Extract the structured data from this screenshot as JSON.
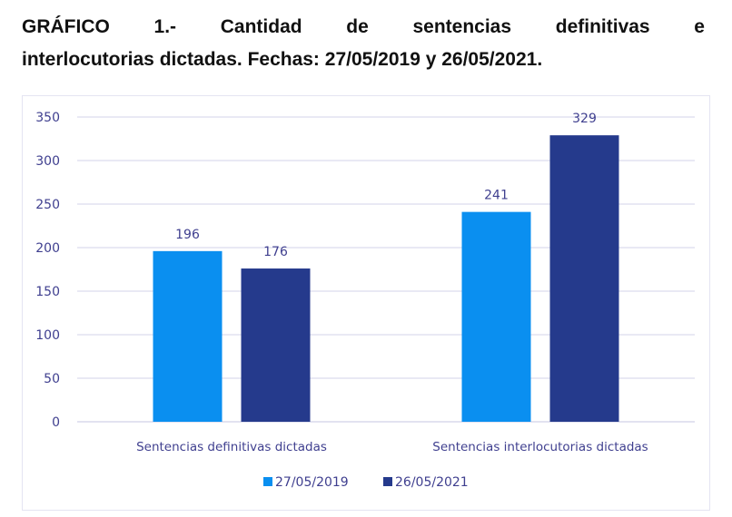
{
  "chart_data": {
    "type": "bar",
    "title_line1": "GRÁFICO 1.- Cantidad de sentencias definitivas e",
    "title_line2": "interlocutorias dictadas. Fechas: 27/05/2019 y 26/05/2021.",
    "categories": [
      "Sentencias definitivas dictadas",
      "Sentencias interlocutorias dictadas"
    ],
    "series": [
      {
        "name": "27/05/2019",
        "color": "#0a8ff0",
        "values": [
          196,
          241
        ]
      },
      {
        "name": "26/05/2021",
        "color": "#253a8c",
        "values": [
          176,
          329
        ]
      }
    ],
    "ylim": [
      0,
      350
    ],
    "yticks": [
      0,
      50,
      100,
      150,
      200,
      250,
      300,
      350
    ],
    "grid": true,
    "legend": "bottom",
    "data_labels": true
  }
}
